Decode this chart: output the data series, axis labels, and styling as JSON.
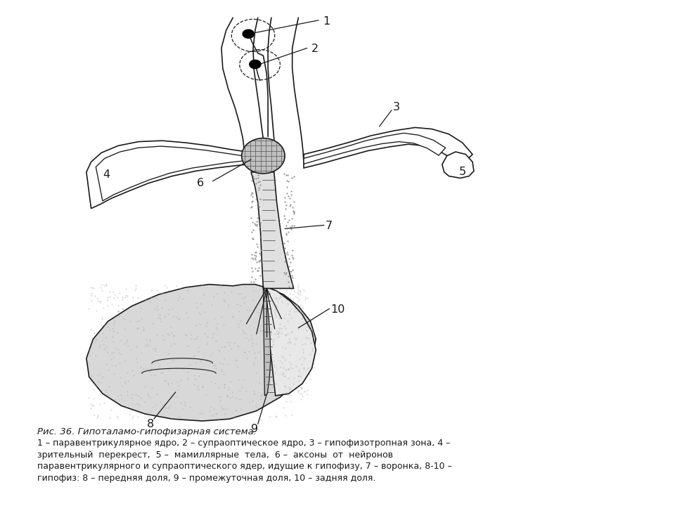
{
  "title": "Рис. 36. Гипоталамо-гипофизарная система.",
  "caption_lines": [
    "1 – паравентрикулярное ядро, 2 – супраоптическое ядро, 3 – гипофизотропная зона, 4 –",
    "зрительный  перекрест,  5 –  мамиллярные  тела,  6 –  аксоны  от  нейронов",
    "паравентрикулярного и супраоптического ядер, идущие к гипофизу, 7 – воронка, 8-10 –",
    "гипофиз: 8 – передняя доля, 9 – промежуточная доля, 10 – задняя доля."
  ],
  "bg_color": "#ffffff",
  "line_color": "#1a1a1a",
  "stipple_color": "#aaaaaa",
  "hatch_color": "#777777",
  "fig_width": 9.6,
  "fig_height": 7.2,
  "dpi": 100,
  "label_1": "1",
  "label_2": "2",
  "label_3": "3",
  "label_4": "4",
  "label_5": "5",
  "label_6": "6",
  "label_7": "7",
  "label_8": "8",
  "label_9": "9",
  "label_10": "10"
}
